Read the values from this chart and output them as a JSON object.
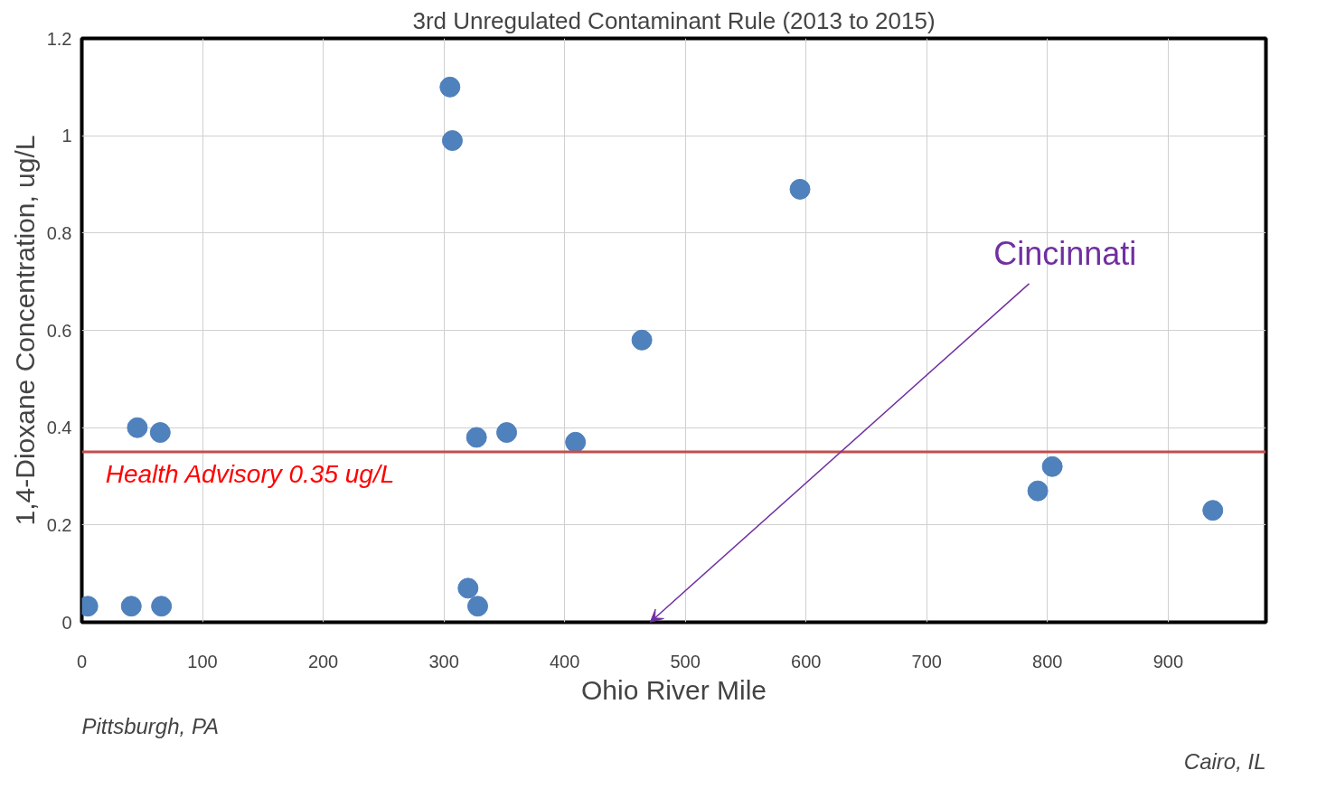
{
  "chart_data": {
    "type": "scatter",
    "title": "3rd Unregulated Contaminant Rule (2013 to 2015)",
    "xlabel": "Ohio River Mile",
    "ylabel": "1,4-Dioxane Concentration, ug/L",
    "x": [
      5,
      41,
      66,
      46,
      65,
      305,
      307,
      327,
      352,
      320,
      328,
      409,
      464,
      595,
      792,
      804,
      937
    ],
    "series": [
      {
        "color": "#4f81bd",
        "values": [
          0.033,
          0.033,
          0.033,
          0.4,
          0.39,
          1.1,
          0.99,
          0.38,
          0.39,
          0.07,
          0.033,
          0.37,
          0.58,
          0.89,
          0.27,
          0.32,
          0.23
        ]
      }
    ],
    "xlim": [
      0,
      981
    ],
    "xticks": [
      0,
      100,
      200,
      300,
      400,
      500,
      600,
      700,
      800,
      900
    ],
    "ylim": [
      0,
      1.2
    ],
    "yticks": [
      0,
      0.2,
      0.4,
      0.6,
      0.8,
      1,
      1.2
    ],
    "ref_lines": [
      {
        "axis": "y",
        "value": 0.35,
        "label": "Health Advisory 0.35 ug/L",
        "color": "#c0504d"
      }
    ],
    "annotations": [
      "Cincinnati",
      "Pittsburgh, PA",
      "Cairo, IL"
    ],
    "grid": true,
    "marker": "circle"
  }
}
